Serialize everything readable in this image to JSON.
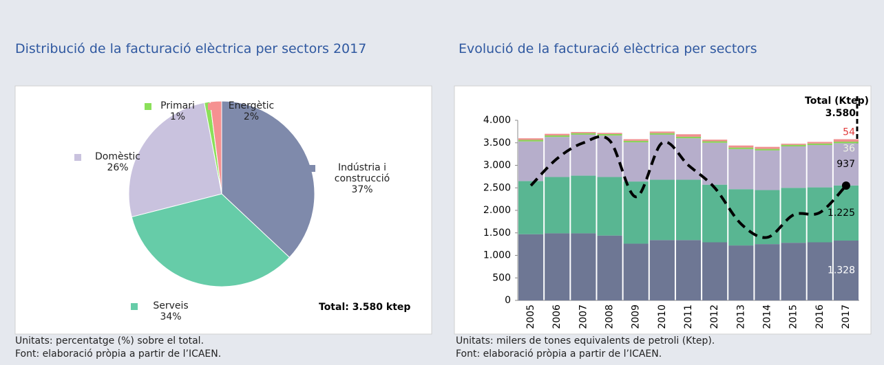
{
  "chart_data": [
    {
      "type": "pie",
      "title": "Distribució de la facturació elèctrica per sectors 2017",
      "categories": [
        "Indústria i construcció",
        "Serveis",
        "Domèstic",
        "Primari",
        "Energètic"
      ],
      "values": [
        37,
        34,
        26,
        1,
        2
      ],
      "value_labels": [
        "37%",
        "34%",
        "26%",
        "1%",
        "2%"
      ],
      "colors": [
        "#7f8aab",
        "#66cca8",
        "#c9c2de",
        "#8be05a",
        "#f59191"
      ],
      "annotation": "Total: 3.580 ktep",
      "notes": [
        "Unitats: percentatge (%) sobre el total.",
        "Font: elaboració pròpia a partir de l’ICAEN."
      ]
    },
    {
      "type": "bar",
      "title": "Evolució de la facturació elèctrica per sectors",
      "categories": [
        "2005",
        "2006",
        "2007",
        "2008",
        "2009",
        "2010",
        "2011",
        "2012",
        "2013",
        "2014",
        "2015",
        "2016",
        "2017"
      ],
      "stacked": true,
      "series": [
        {
          "name": "Indústria i construcció",
          "color": "#6e7794",
          "label_color": "#ffffff",
          "values": [
            1470,
            1490,
            1490,
            1440,
            1260,
            1340,
            1340,
            1290,
            1220,
            1250,
            1280,
            1290,
            1328
          ],
          "value_labels": [
            null,
            null,
            null,
            null,
            null,
            null,
            null,
            null,
            null,
            null,
            null,
            null,
            "1.328"
          ]
        },
        {
          "name": "Serveis",
          "color": "#59b692",
          "label_color": "#000000",
          "values": [
            1180,
            1250,
            1280,
            1300,
            1380,
            1340,
            1340,
            1280,
            1250,
            1200,
            1220,
            1220,
            1225
          ],
          "value_labels": [
            null,
            null,
            null,
            null,
            null,
            null,
            null,
            null,
            null,
            null,
            null,
            null,
            "1.225"
          ]
        },
        {
          "name": "Domèstic",
          "color": "#b6aecb",
          "label_color": "#000000",
          "values": [
            880,
            890,
            910,
            920,
            870,
            1000,
            920,
            930,
            890,
            880,
            920,
            940,
            937
          ],
          "value_labels": [
            null,
            null,
            null,
            null,
            null,
            null,
            null,
            null,
            null,
            null,
            null,
            null,
            "937"
          ]
        },
        {
          "name": "Primari",
          "color": "#8ad35a",
          "label_color": "#eef2e4",
          "values": [
            35,
            35,
            35,
            35,
            35,
            35,
            35,
            35,
            35,
            35,
            35,
            35,
            36
          ],
          "value_labels": [
            null,
            null,
            null,
            null,
            null,
            null,
            null,
            null,
            null,
            null,
            null,
            null,
            "36"
          ]
        },
        {
          "name": "Energètic",
          "color": "#f08f8f",
          "label_color": "#e03a3a",
          "values": [
            35,
            35,
            25,
            25,
            35,
            35,
            55,
            35,
            45,
            45,
            25,
            35,
            54
          ],
          "value_labels": [
            null,
            null,
            null,
            null,
            null,
            null,
            null,
            null,
            null,
            null,
            null,
            null,
            "54"
          ]
        }
      ],
      "line": {
        "color": "#000000",
        "values": [
          2550,
          3150,
          3500,
          3550,
          2300,
          3500,
          3000,
          2500,
          1700,
          1400,
          1900,
          1950,
          2550
        ]
      },
      "ylim": [
        0,
        4000
      ],
      "yticks": [
        0,
        500,
        {
          "value": 1000,
          "label": "1.000"
        },
        {
          "value": 1500,
          "label": "1.500"
        },
        {
          "value": 2000,
          "label": "2.000"
        },
        {
          "value": 2500,
          "label": "2.500"
        },
        {
          "value": 3000,
          "label": "3.000"
        },
        {
          "value": 3500,
          "label": "3.500"
        },
        {
          "value": 4000,
          "label": "4.000"
        }
      ],
      "total": {
        "label": "Total (Ktep)",
        "value": 3580,
        "value_label": "3.580"
      },
      "notes": [
        "Unitats: milers de tones equivalents de petroli (Ktep).",
        "Font: elaboració pròpia a partir de l’ICAEN."
      ]
    }
  ]
}
